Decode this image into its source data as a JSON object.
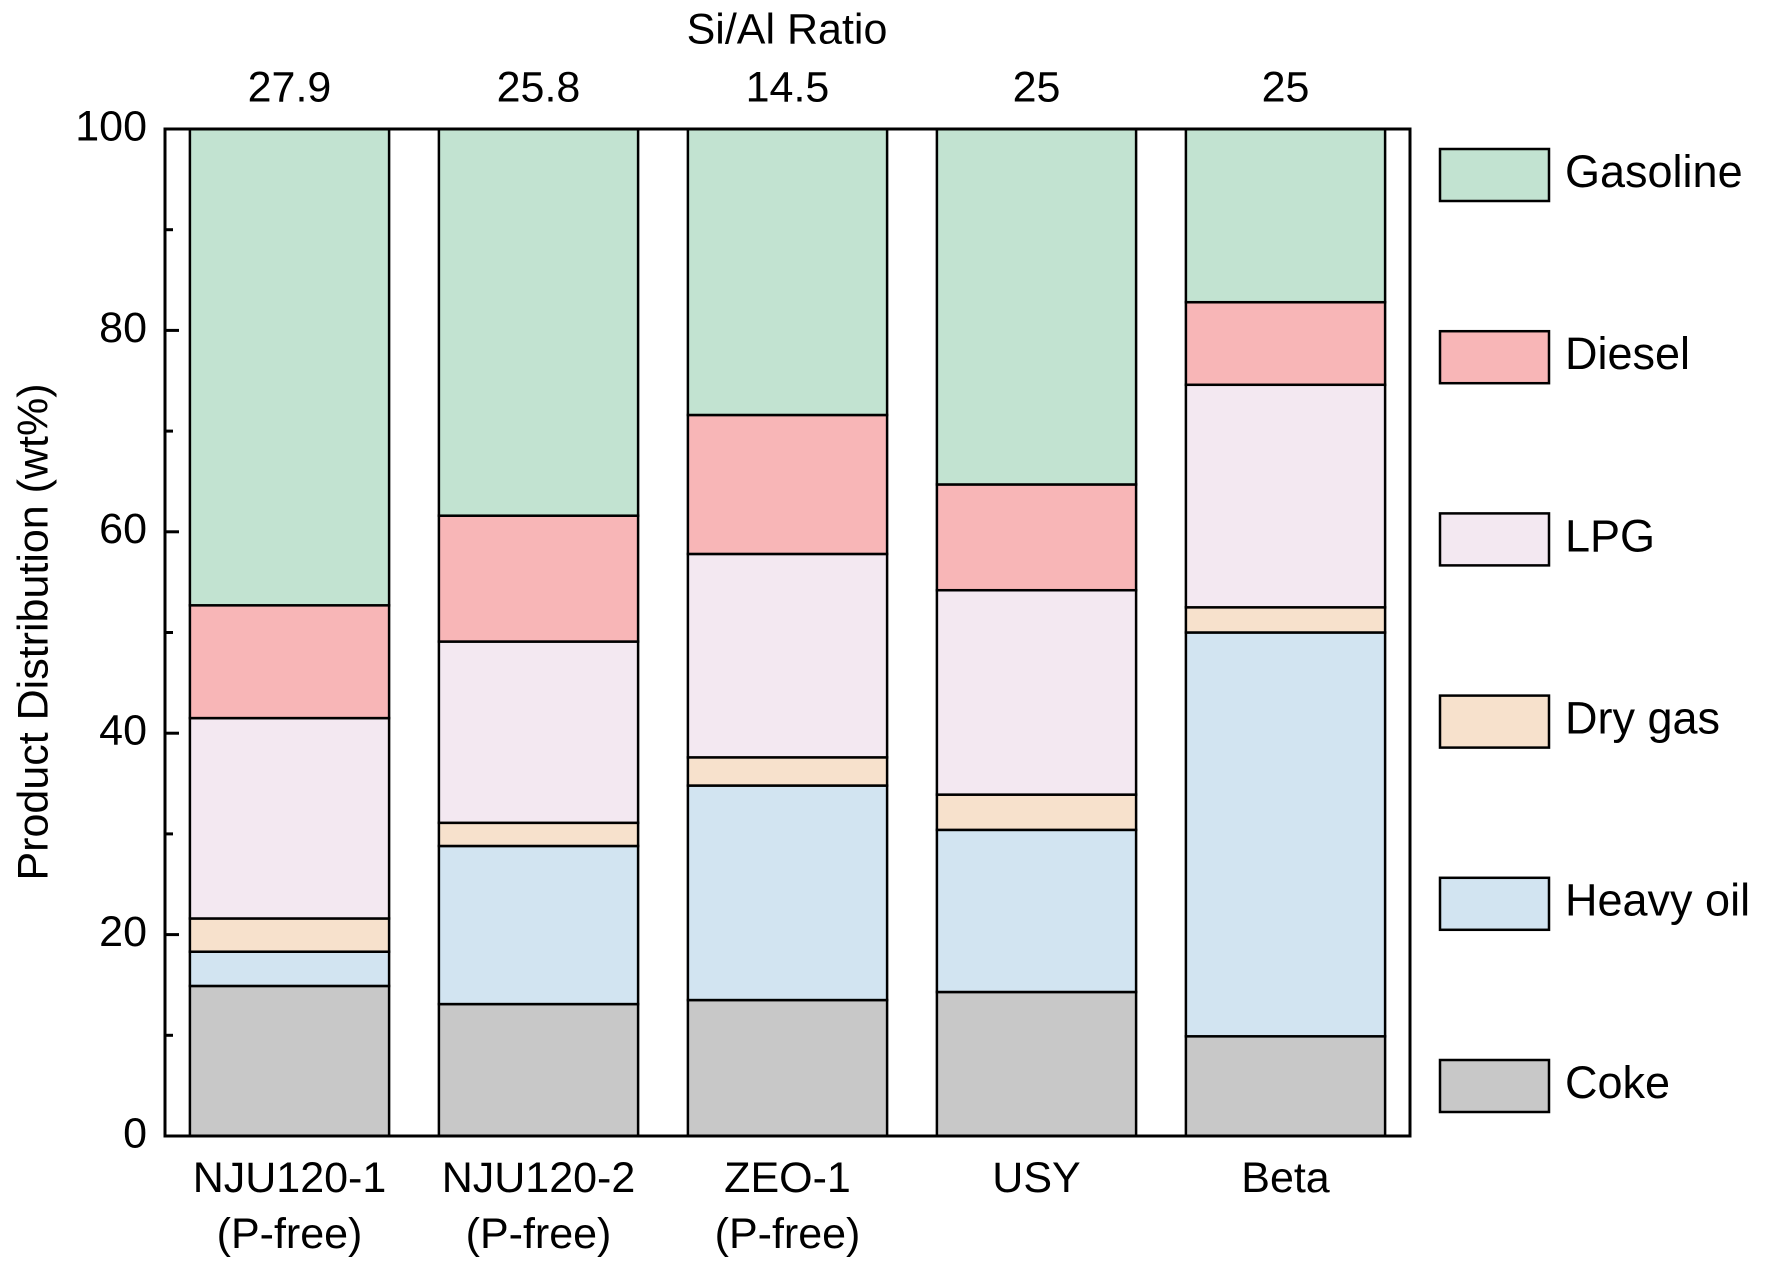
{
  "chart_data": {
    "type": "stacked_bar",
    "title": "Si/Al Ratio",
    "top_labels": [
      27.9,
      25.8,
      14.5,
      25,
      25
    ],
    "y_label": "Product Distribution (wt%)",
    "categories": [
      "NJU120-1\n(P-free)",
      "NJU120-2\n(P-free)",
      "ZEO-1\n(P-free)",
      "USY",
      "Beta"
    ],
    "series": [
      {
        "name": "Coke",
        "color": "#c8c8c8",
        "values": [
          14.9,
          13.1,
          13.5,
          14.3,
          9.9
        ]
      },
      {
        "name": "Heavy oil",
        "color": "#d2e4f1",
        "values": [
          3.4,
          15.7,
          21.3,
          16.1,
          40.1
        ]
      },
      {
        "name": "Dry gas",
        "color": "#f7e1cc",
        "values": [
          3.3,
          2.3,
          2.8,
          3.5,
          2.5
        ]
      },
      {
        "name": "LPG",
        "color": "#f3e8f1",
        "values": [
          19.9,
          18.0,
          20.2,
          20.3,
          22.1
        ]
      },
      {
        "name": "Diesel",
        "color": "#f8b6b7",
        "values": [
          11.2,
          12.5,
          13.8,
          10.5,
          8.2
        ]
      },
      {
        "name": "Gasoline",
        "color": "#c2e3d1",
        "values": [
          47.3,
          38.4,
          28.4,
          35.3,
          17.2
        ]
      }
    ],
    "ylim": [
      0,
      100
    ],
    "yticks": [
      0,
      20,
      40,
      60,
      80,
      100
    ],
    "yminorticks": [
      10,
      30,
      50,
      70,
      90
    ],
    "legend": "right"
  }
}
